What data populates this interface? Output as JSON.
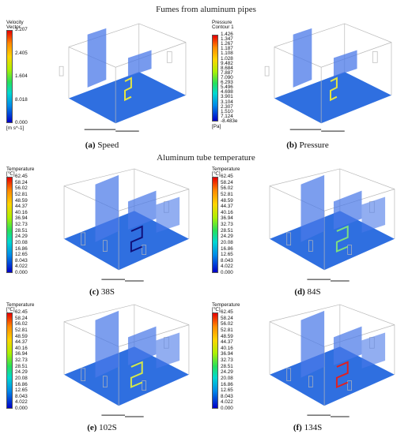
{
  "sections": {
    "top_heading": "Fumes from aluminum pipes",
    "middle_heading": "Aluminum tube temperature"
  },
  "panels": [
    {
      "tag": "(a)",
      "caption": "Speed",
      "legend_title": "Velocity\nVector",
      "ticks": [
        "3.207",
        "2.405",
        "1.604",
        "8.018",
        "0.000"
      ],
      "unit": "[m s^-1]",
      "tube_color": "#e6e640"
    },
    {
      "tag": "(b)",
      "caption": "Pressure",
      "legend_title": "Pressure\nContour 1",
      "ticks": [
        "1.426",
        "1.347",
        "1.267",
        "1.187",
        "1.108",
        "1.028",
        "9.482",
        "8.684",
        "7.887",
        "7.090",
        "6.293",
        "5.496",
        "4.698",
        "3.901",
        "3.104",
        "2.307",
        "1.510",
        "7.124",
        "-8.483e"
      ],
      "unit": "[Pa]",
      "tube_color": "#e6e640"
    },
    {
      "tag": "(c)",
      "caption": "38S",
      "legend_title": "Temperature\n[℃]",
      "ticks": [
        "62.45",
        "58.24",
        "56.02",
        "52.81",
        "48.59",
        "44.37",
        "40.16",
        "36.94",
        "32.73",
        "28.51",
        "24.29",
        "20.08",
        "16.86",
        "12.65",
        "8.043",
        "4.022",
        "0.000"
      ],
      "unit": "",
      "tube_color": "#10107a"
    },
    {
      "tag": "(d)",
      "caption": "84S",
      "legend_title": "Temperature\n[℃]",
      "ticks": [
        "62.45",
        "58.24",
        "56.02",
        "52.81",
        "48.59",
        "44.37",
        "40.16",
        "36.94",
        "32.73",
        "28.51",
        "24.29",
        "20.08",
        "16.86",
        "12.65",
        "8.043",
        "4.022",
        "0.000"
      ],
      "unit": "",
      "tube_color": "#7fe07f"
    },
    {
      "tag": "(e)",
      "caption": "102S",
      "legend_title": "Temperature\n[℃]",
      "ticks": [
        "62.45",
        "58.24",
        "56.02",
        "52.81",
        "48.59",
        "44.37",
        "40.16",
        "36.94",
        "32.73",
        "28.51",
        "24.29",
        "20.08",
        "16.86",
        "12.65",
        "8.043",
        "4.022",
        "0.000"
      ],
      "unit": "",
      "tube_color": "#d4e84a"
    },
    {
      "tag": "(f)",
      "caption": "134S",
      "legend_title": "Temperature\n[℃]",
      "ticks": [
        "62.45",
        "58.24",
        "56.02",
        "52.81",
        "48.59",
        "44.37",
        "40.16",
        "36.94",
        "32.73",
        "28.51",
        "24.29",
        "20.08",
        "16.86",
        "12.65",
        "8.043",
        "4.022",
        "0.000"
      ],
      "unit": "",
      "tube_color": "#e02020"
    }
  ]
}
